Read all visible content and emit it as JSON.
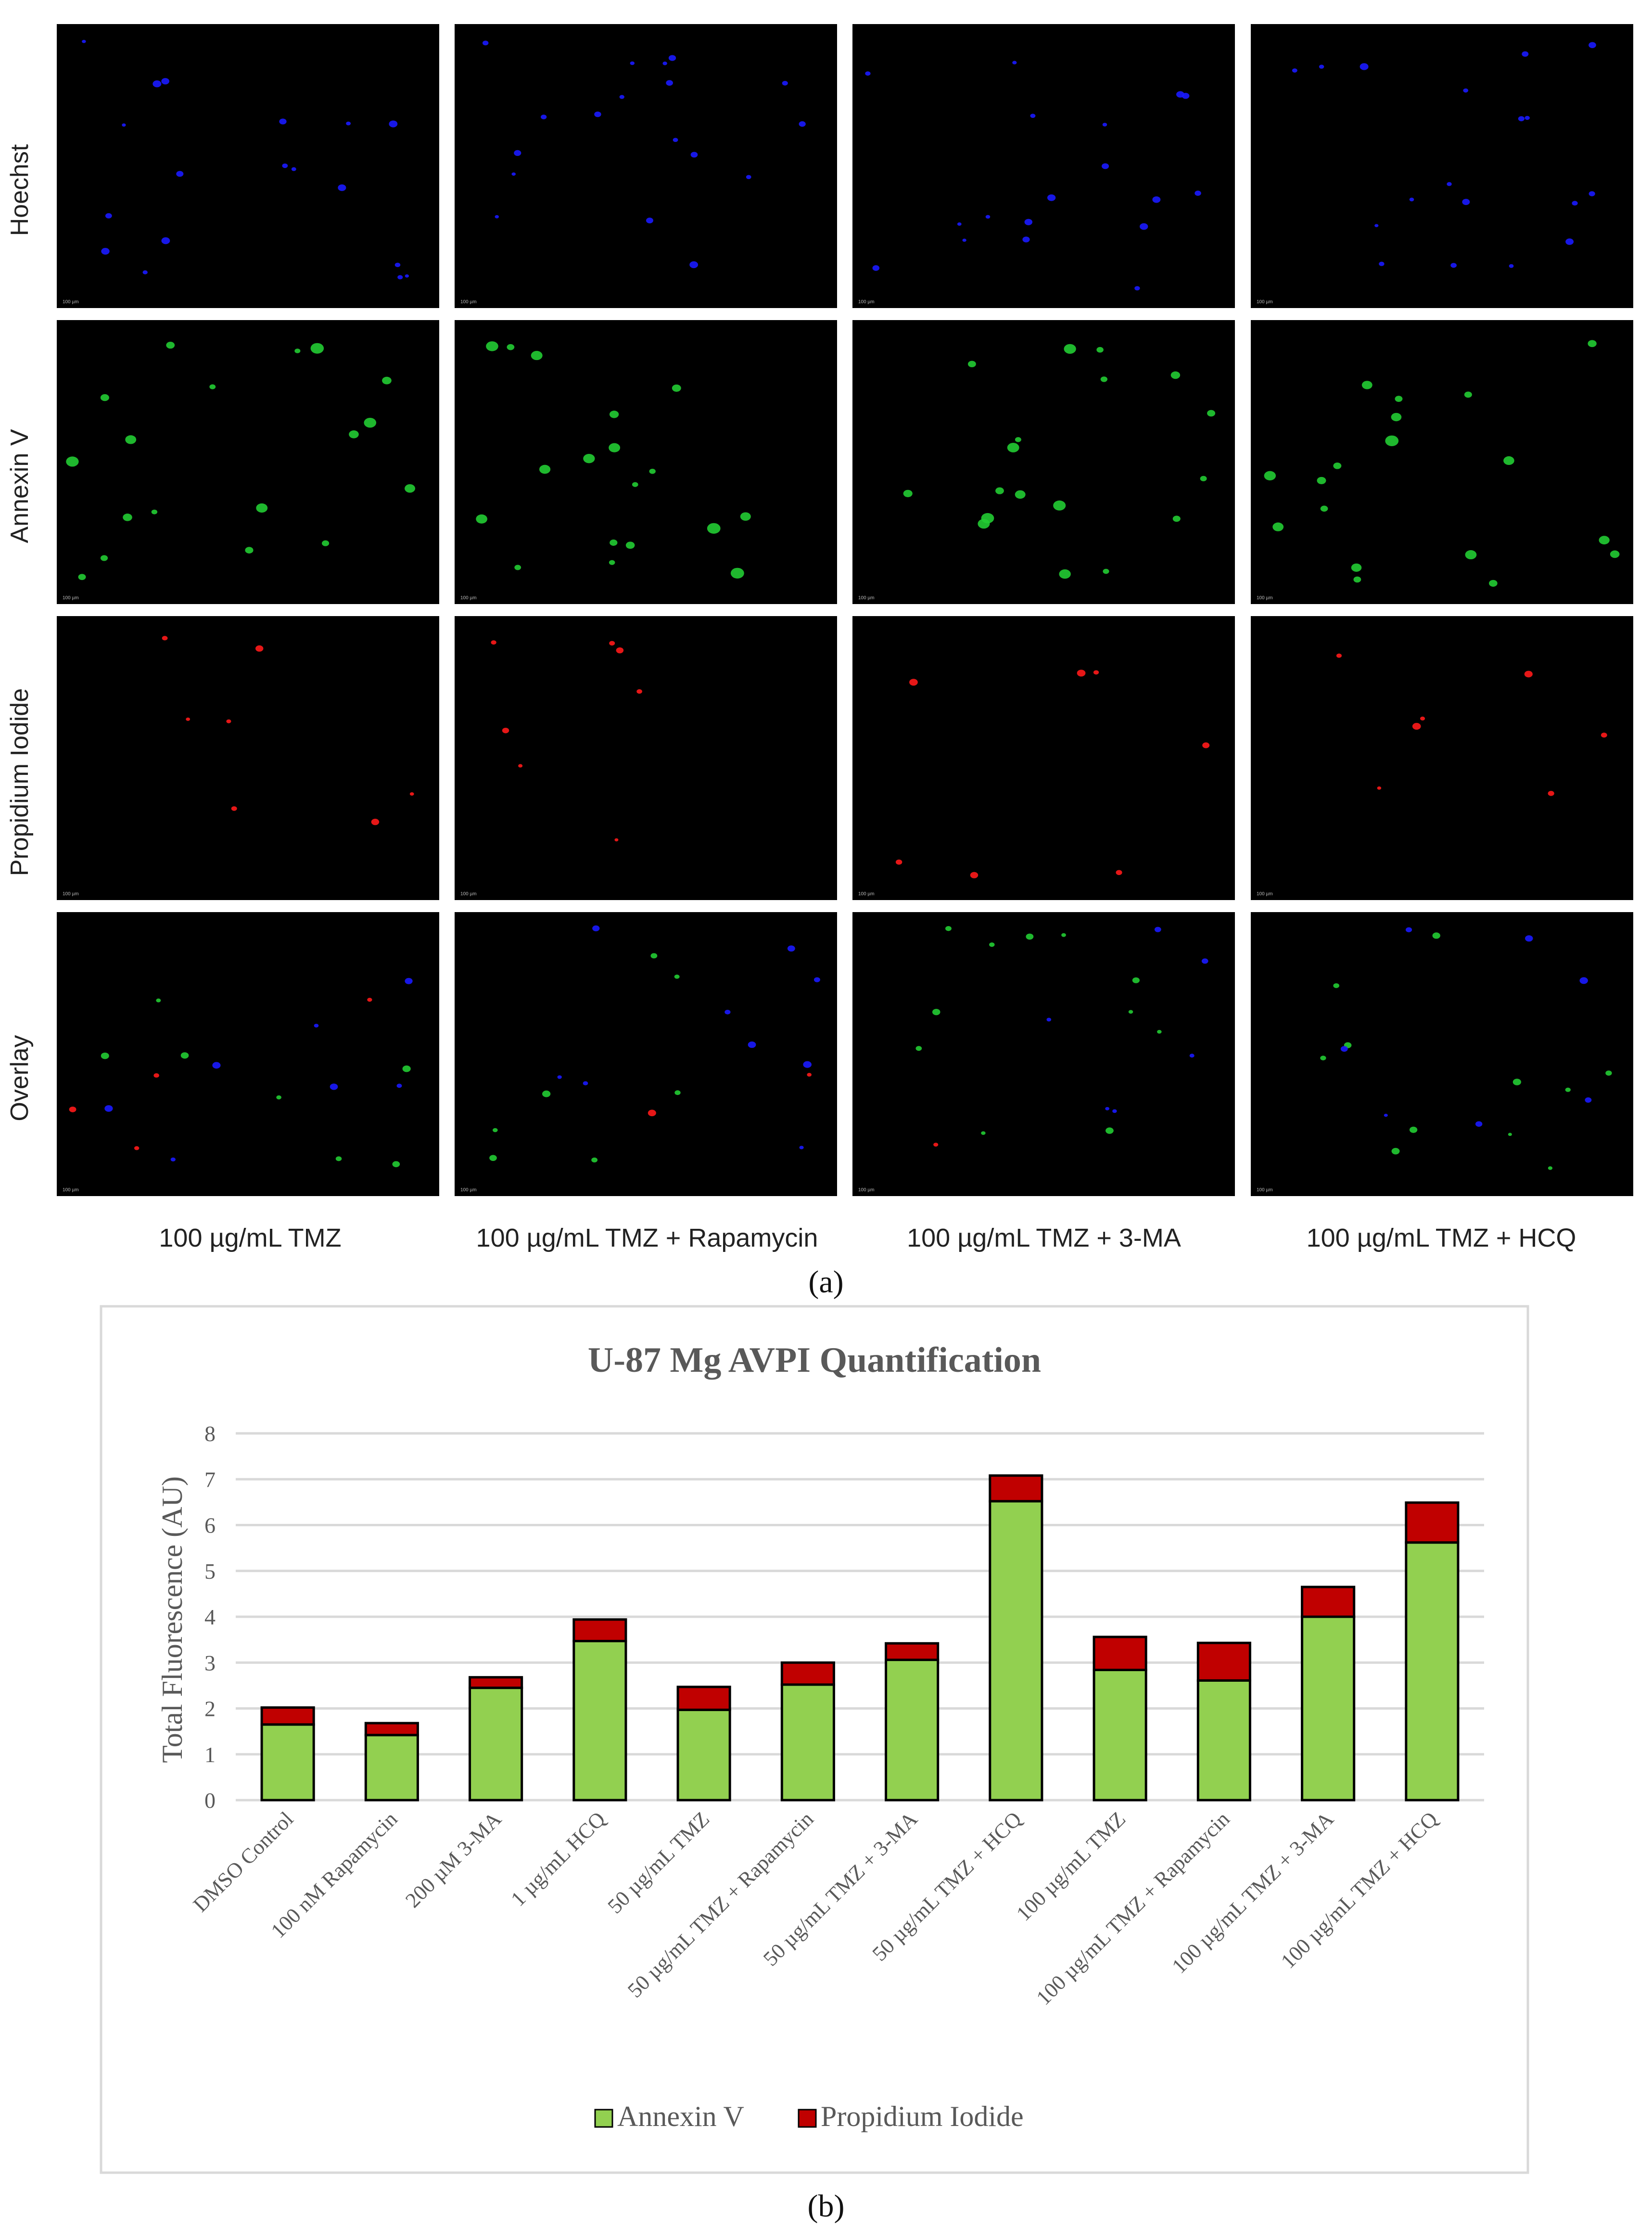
{
  "panel_a": {
    "row_labels": [
      "Hoechst",
      "Annexin V",
      "Propidium Iodide",
      "Overlay"
    ],
    "column_labels": [
      "100 µg/mL TMZ",
      "100 µg/mL TMZ + Rapamycin",
      "100 µg/mL TMZ + 3-MA",
      "100 µg/mL TMZ + HCQ"
    ],
    "scale_bar_label": "100 µm",
    "panel_label": "(a)",
    "row_colors": [
      "#1a1aff",
      "#22cc33",
      "#ff1a1a",
      "mixed"
    ]
  },
  "chart_data": {
    "type": "bar",
    "stacked": true,
    "title": "U-87 Mg AVPI Quantification",
    "ylabel": "Total Fluorescence (AU)",
    "xlabel": "",
    "ylim": [
      0,
      8
    ],
    "yticks": [
      0,
      1,
      2,
      3,
      4,
      5,
      6,
      7,
      8
    ],
    "grid": true,
    "legend_position": "bottom",
    "categories": [
      "DMSO Control",
      "100 nM Rapamycin",
      "200 µM 3-MA",
      "1 µg/mL HCQ",
      "50 µg/mL TMZ",
      "50 µg/mL TMZ + Rapamycin",
      "50 µg/mL TMZ + 3-MA",
      "50 µg/mL TMZ + HCQ",
      "100 µg/mL TMZ",
      "100 µg/mL TMZ + Rapamycin",
      "100 µg/mL TMZ + 3-MA",
      "100 µg/mL TMZ + HCQ"
    ],
    "series": [
      {
        "name": "Annexin V",
        "color": "#92d050",
        "values": [
          1.65,
          1.42,
          2.45,
          3.47,
          1.97,
          2.52,
          3.06,
          6.52,
          2.84,
          2.61,
          4.0,
          5.62
        ]
      },
      {
        "name": "Propidium Iodide",
        "color": "#c00000",
        "values": [
          0.37,
          0.26,
          0.23,
          0.47,
          0.5,
          0.48,
          0.36,
          0.56,
          0.72,
          0.82,
          0.65,
          0.87
        ]
      }
    ],
    "panel_label": "(b)"
  }
}
